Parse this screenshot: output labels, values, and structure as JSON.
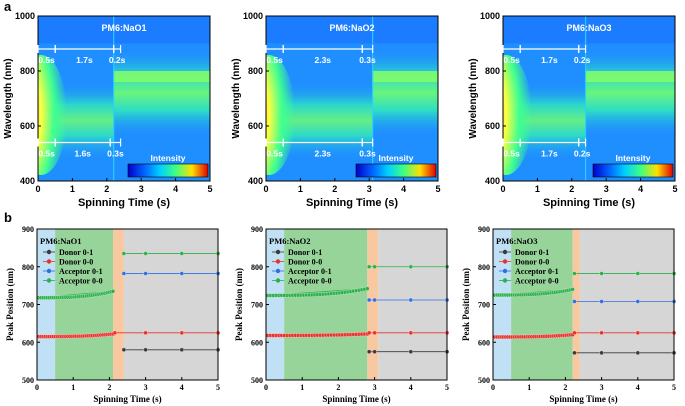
{
  "panel_labels": {
    "a": "a",
    "b": "b"
  },
  "colors": {
    "heat_bg": "#1f8fff",
    "donor01": "#3a3a3a",
    "donor00": "#e8322c",
    "acceptor01": "#2f6fe0",
    "acceptor00": "#2bb04a",
    "stage_blue": "#bfe0f5",
    "stage_green": "#96d49a",
    "stage_orange": "#f8c9a0",
    "stage_gray": "#d6d6d6"
  },
  "chart_data": [
    {
      "type": "heatmap",
      "title": "PM6:NaO1",
      "xlabel": "Spinning Time (s)",
      "ylabel": "Wavelength (nm)",
      "xlim": [
        0,
        5
      ],
      "ylim": [
        400,
        1000
      ],
      "xticks": [
        "0",
        "1",
        "2",
        "3",
        "4",
        "5"
      ],
      "yticks": [
        "400",
        "600",
        "800",
        "1000"
      ],
      "colorbar_label": "Intensity",
      "top_intervals": [
        "0.5s",
        "1.7s",
        "0.2s"
      ],
      "bottom_intervals": [
        "0.5s",
        "1.6s",
        "0.3s"
      ],
      "transition_time": 2.2
    },
    {
      "type": "heatmap",
      "title": "PM6:NaO2",
      "xlabel": "Spinning Time (s)",
      "ylabel": "Wavelength (nm)",
      "xlim": [
        0,
        5
      ],
      "ylim": [
        400,
        1000
      ],
      "xticks": [
        "0",
        "1",
        "2",
        "3",
        "4",
        "5"
      ],
      "yticks": [
        "400",
        "600",
        "800",
        "1000"
      ],
      "colorbar_label": "Intensity",
      "top_intervals": [
        "0.5s",
        "2.3s",
        "0.3s"
      ],
      "bottom_intervals": [
        "0.5s",
        "2.3s",
        "0.3s"
      ],
      "transition_time": 3.1
    },
    {
      "type": "heatmap",
      "title": "PM6:NaO3",
      "xlabel": "Spinning Time (s)",
      "ylabel": "Wavelength (nm)",
      "xlim": [
        0,
        5
      ],
      "ylim": [
        400,
        1000
      ],
      "xticks": [
        "0",
        "1",
        "2",
        "3",
        "4",
        "5"
      ],
      "yticks": [
        "400",
        "600",
        "800",
        "1000"
      ],
      "colorbar_label": "Intensity",
      "top_intervals": [
        "0.5s",
        "1.7s",
        "0.2s"
      ],
      "bottom_intervals": [
        "0.5s",
        "1.7s",
        "0.2s"
      ],
      "transition_time": 2.4
    },
    {
      "type": "scatter",
      "title": "PM6:NaO1",
      "xlabel": "Spinning Time (s)",
      "ylabel": "Peak Position (nm)",
      "xlim": [
        0,
        5
      ],
      "ylim": [
        500,
        900
      ],
      "xticks": [
        "0",
        "1",
        "2",
        "3",
        "4",
        "5"
      ],
      "yticks": [
        "500",
        "600",
        "700",
        "800",
        "900"
      ],
      "legend_position": "top-left",
      "stages": [
        0,
        0.5,
        2.1,
        2.4,
        5
      ],
      "series": [
        {
          "name": "Donor 0-1",
          "segments": [
            {
              "x0": 2.4,
              "x1": 5,
              "y0": 580,
              "y1": 580
            }
          ]
        },
        {
          "name": "Donor 0-0",
          "segments": [
            {
              "x0": 0.05,
              "x1": 2.1,
              "y0": 615,
              "y1": 622
            },
            {
              "x0": 2.15,
              "x1": 5,
              "y0": 625,
              "y1": 625
            }
          ]
        },
        {
          "name": "Acceptor 0-1",
          "segments": [
            {
              "x0": 2.4,
              "x1": 5,
              "y0": 782,
              "y1": 782
            }
          ]
        },
        {
          "name": "Acceptor 0-0",
          "segments": [
            {
              "x0": 0.05,
              "x1": 2.1,
              "y0": 718,
              "y1": 735
            },
            {
              "x0": 2.4,
              "x1": 5,
              "y0": 835,
              "y1": 835
            }
          ]
        }
      ]
    },
    {
      "type": "scatter",
      "title": "PM6:NaO2",
      "xlabel": "Spinning Time (s)",
      "ylabel": "Peak Position (nm)",
      "xlim": [
        0,
        5
      ],
      "ylim": [
        500,
        900
      ],
      "xticks": [
        "0",
        "1",
        "2",
        "3",
        "4",
        "5"
      ],
      "yticks": [
        "500",
        "600",
        "700",
        "800",
        "900"
      ],
      "legend_position": "top-left",
      "stages": [
        0,
        0.5,
        2.8,
        3.1,
        5
      ],
      "series": [
        {
          "name": "Donor 0-1",
          "segments": [
            {
              "x0": 2.85,
              "x1": 5,
              "y0": 575,
              "y1": 575
            }
          ]
        },
        {
          "name": "Donor 0-0",
          "segments": [
            {
              "x0": 0.05,
              "x1": 2.8,
              "y0": 618,
              "y1": 622
            },
            {
              "x0": 2.85,
              "x1": 5,
              "y0": 625,
              "y1": 625
            }
          ]
        },
        {
          "name": "Acceptor 0-1",
          "segments": [
            {
              "x0": 2.85,
              "x1": 5,
              "y0": 712,
              "y1": 712
            }
          ]
        },
        {
          "name": "Acceptor 0-0",
          "segments": [
            {
              "x0": 0.05,
              "x1": 2.8,
              "y0": 724,
              "y1": 742
            },
            {
              "x0": 2.85,
              "x1": 5,
              "y0": 800,
              "y1": 800
            }
          ]
        }
      ]
    },
    {
      "type": "scatter",
      "title": "PM6:NaO3",
      "xlabel": "Spinning Time (s)",
      "ylabel": "Peak Position (nm)",
      "xlim": [
        0,
        5
      ],
      "ylim": [
        500,
        900
      ],
      "xticks": [
        "0",
        "1",
        "2",
        "3",
        "4",
        "5"
      ],
      "yticks": [
        "500",
        "600",
        "700",
        "800",
        "900"
      ],
      "legend_position": "top-left",
      "stages": [
        0,
        0.5,
        2.2,
        2.4,
        5
      ],
      "series": [
        {
          "name": "Donor 0-1",
          "segments": [
            {
              "x0": 2.25,
              "x1": 5,
              "y0": 572,
              "y1": 572
            }
          ]
        },
        {
          "name": "Donor 0-0",
          "segments": [
            {
              "x0": 0.05,
              "x1": 2.2,
              "y0": 614,
              "y1": 620
            },
            {
              "x0": 2.25,
              "x1": 5,
              "y0": 625,
              "y1": 625
            }
          ]
        },
        {
          "name": "Acceptor 0-1",
          "segments": [
            {
              "x0": 2.25,
              "x1": 5,
              "y0": 708,
              "y1": 708
            }
          ]
        },
        {
          "name": "Acceptor 0-0",
          "segments": [
            {
              "x0": 0.05,
              "x1": 2.2,
              "y0": 725,
              "y1": 740
            },
            {
              "x0": 2.25,
              "x1": 5,
              "y0": 782,
              "y1": 782
            }
          ]
        }
      ]
    }
  ]
}
